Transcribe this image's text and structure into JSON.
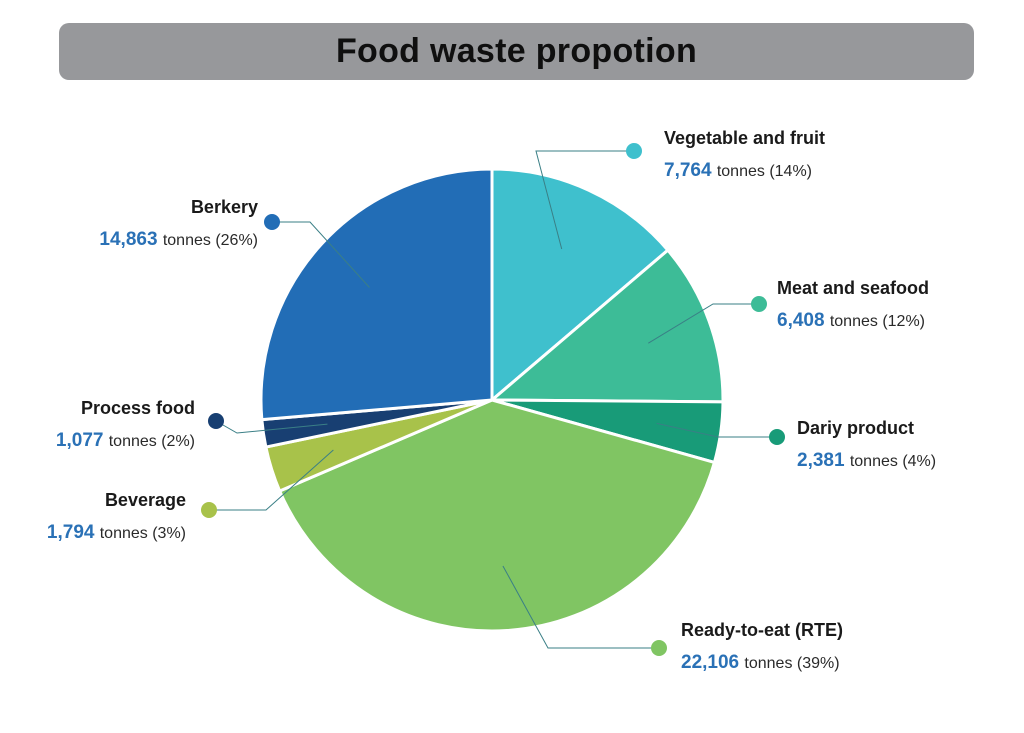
{
  "title": "Food waste propotion",
  "colors": {
    "title_bg": "#97989b",
    "value_text": "#2a71b6",
    "leader_line": "#3a7f86"
  },
  "chart_data": {
    "type": "pie",
    "title": "Food waste propotion",
    "unit": "tonnes",
    "slices": [
      {
        "label": "Vegetable and fruit",
        "value": 7764,
        "value_text": "7,764",
        "unit": "tonnes",
        "percent_text": "(14%)",
        "color": "#3fc0cd"
      },
      {
        "label": "Meat and seafood",
        "value": 6408,
        "value_text": "6,408",
        "unit": "tonnes",
        "percent_text": "(12%)",
        "color": "#3dbc97"
      },
      {
        "label": "Dariy product",
        "value": 2381,
        "value_text": "2,381",
        "unit": "tonnes",
        "percent_text": "(4%)",
        "color": "#189b78"
      },
      {
        "label": "Ready-to-eat (RTE)",
        "value": 22106,
        "value_text": "22,106",
        "unit": "tonnes",
        "percent_text": "(39%)",
        "color": "#80c563"
      },
      {
        "label": "Beverage",
        "value": 1794,
        "value_text": "1,794",
        "unit": "tonnes",
        "percent_text": "(3%)",
        "color": "#a8c24a"
      },
      {
        "label": "Process food",
        "value": 1077,
        "value_text": "1,077",
        "unit": "tonnes",
        "percent_text": "(2%)",
        "color": "#183f72"
      },
      {
        "label": "Berkery",
        "value": 14863,
        "value_text": "14,863",
        "unit": "tonnes",
        "percent_text": "(26%)",
        "color": "#226db6"
      }
    ]
  }
}
